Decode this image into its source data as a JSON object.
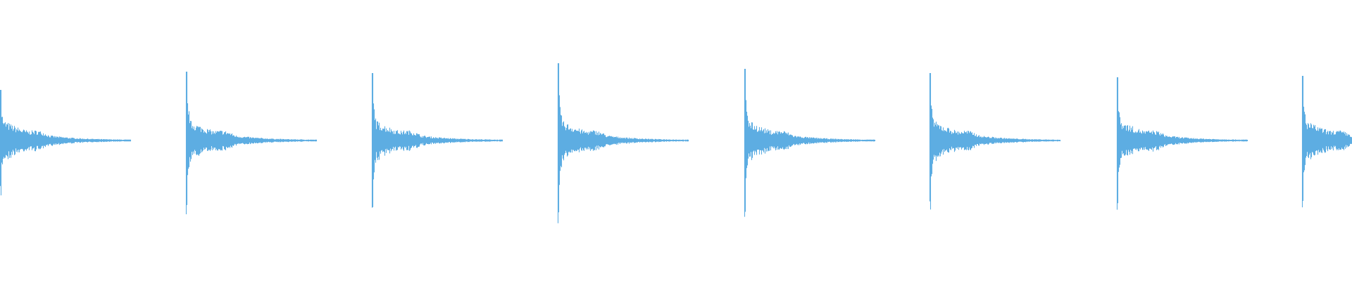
{
  "waveform": {
    "color": "#5dade2",
    "background": "#ffffff",
    "events": [
      {
        "peak": 0.36,
        "decay_tail": 0.12
      },
      {
        "peak": 0.49,
        "decay_tail": 0.11
      },
      {
        "peak": 0.48,
        "decay_tail": 0.11
      },
      {
        "peak": 0.55,
        "decay_tail": 0.12
      },
      {
        "peak": 0.51,
        "decay_tail": 0.11
      },
      {
        "peak": 0.48,
        "decay_tail": 0.11
      },
      {
        "peak": 0.45,
        "decay_tail": 0.11
      },
      {
        "peak": 0.46,
        "decay_tail": 0.11
      }
    ]
  }
}
